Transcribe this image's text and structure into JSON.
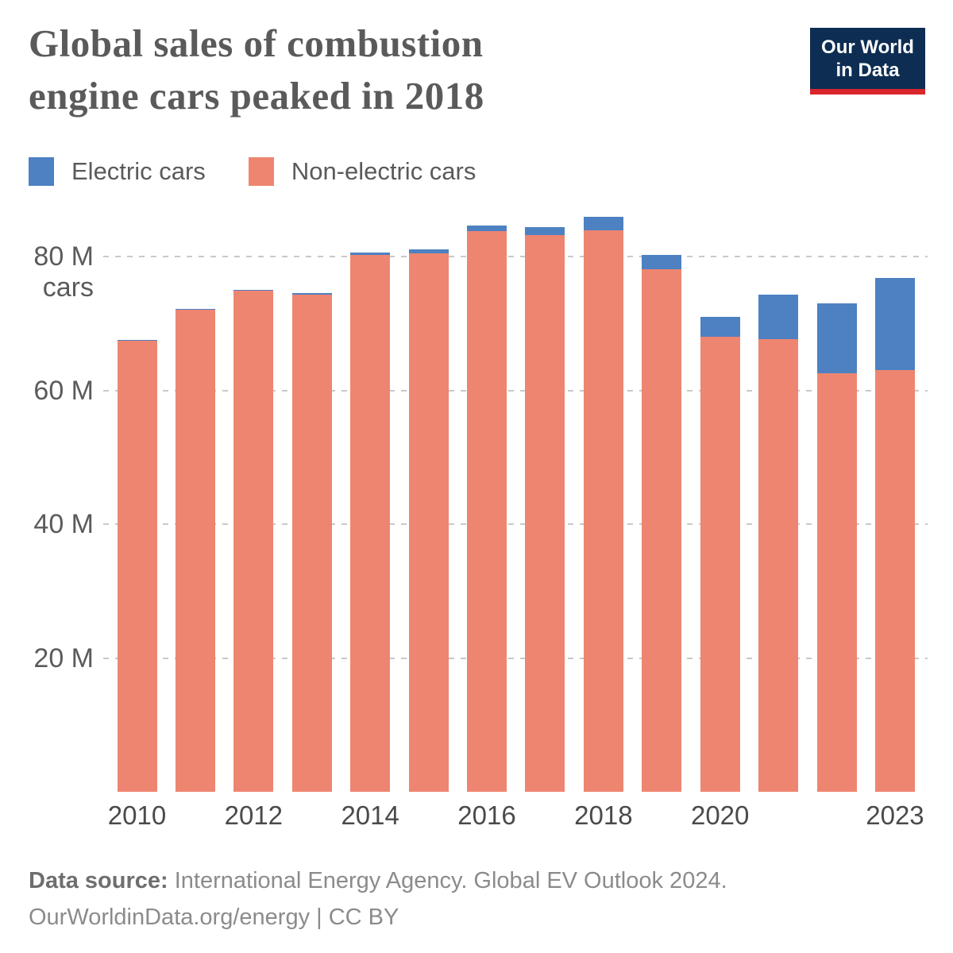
{
  "header": {
    "title_line1": "Global sales of combustion",
    "title_line2": "engine cars peaked in 2018",
    "logo": {
      "line1": "Our World",
      "line2": "in Data",
      "bg_color": "#0d2d52",
      "accent_color": "#d8262c"
    }
  },
  "legend": {
    "items": [
      {
        "label": "Electric cars",
        "color": "#4d81c2"
      },
      {
        "label": "Non-electric cars",
        "color": "#ee8570"
      }
    ]
  },
  "chart_data": {
    "type": "bar",
    "stacked": true,
    "title": "Global sales of combustion engine cars peaked in 2018",
    "xlabel": "",
    "ylabel": "cars",
    "unit": "million cars",
    "grid": "horizontal dashed",
    "legend_position": "top-left",
    "ylim": [
      0,
      88
    ],
    "categories": [
      "2010",
      "2011",
      "2012",
      "2013",
      "2014",
      "2015",
      "2016",
      "2017",
      "2018",
      "2019",
      "2020",
      "2021",
      "2022",
      "2023"
    ],
    "series": [
      {
        "name": "Non-electric cars",
        "color": "#ee8570",
        "values": [
          67.6,
          72.1,
          74.9,
          74.3,
          80.3,
          80.5,
          83.8,
          83.2,
          83.9,
          78.1,
          68.0,
          67.7,
          62.6,
          63.0
        ]
      },
      {
        "name": "Electric cars",
        "color": "#4d81c2",
        "values": [
          0.01,
          0.05,
          0.13,
          0.2,
          0.32,
          0.55,
          0.8,
          1.2,
          2.1,
          2.2,
          3.0,
          6.6,
          10.4,
          13.8
        ]
      }
    ],
    "totals": [
      67.6,
      72.2,
      75.0,
      74.5,
      80.6,
      81.1,
      84.6,
      84.4,
      86.0,
      80.3,
      71.0,
      74.3,
      73.0,
      76.8
    ],
    "y_ticks": [
      {
        "value": 20,
        "label": "20 M"
      },
      {
        "value": 40,
        "label": "40 M"
      },
      {
        "value": 60,
        "label": "60 M"
      },
      {
        "value": 80,
        "label": "80 M",
        "sub": "cars"
      }
    ],
    "x_tick_years": [
      "2010",
      "2012",
      "2014",
      "2016",
      "2018",
      "2020",
      "2023"
    ]
  },
  "footer": {
    "source_label": "Data source:",
    "source_text": " International Energy Agency. Global EV Outlook 2024.",
    "link_line": "OurWorldinData.org/energy | CC BY"
  }
}
